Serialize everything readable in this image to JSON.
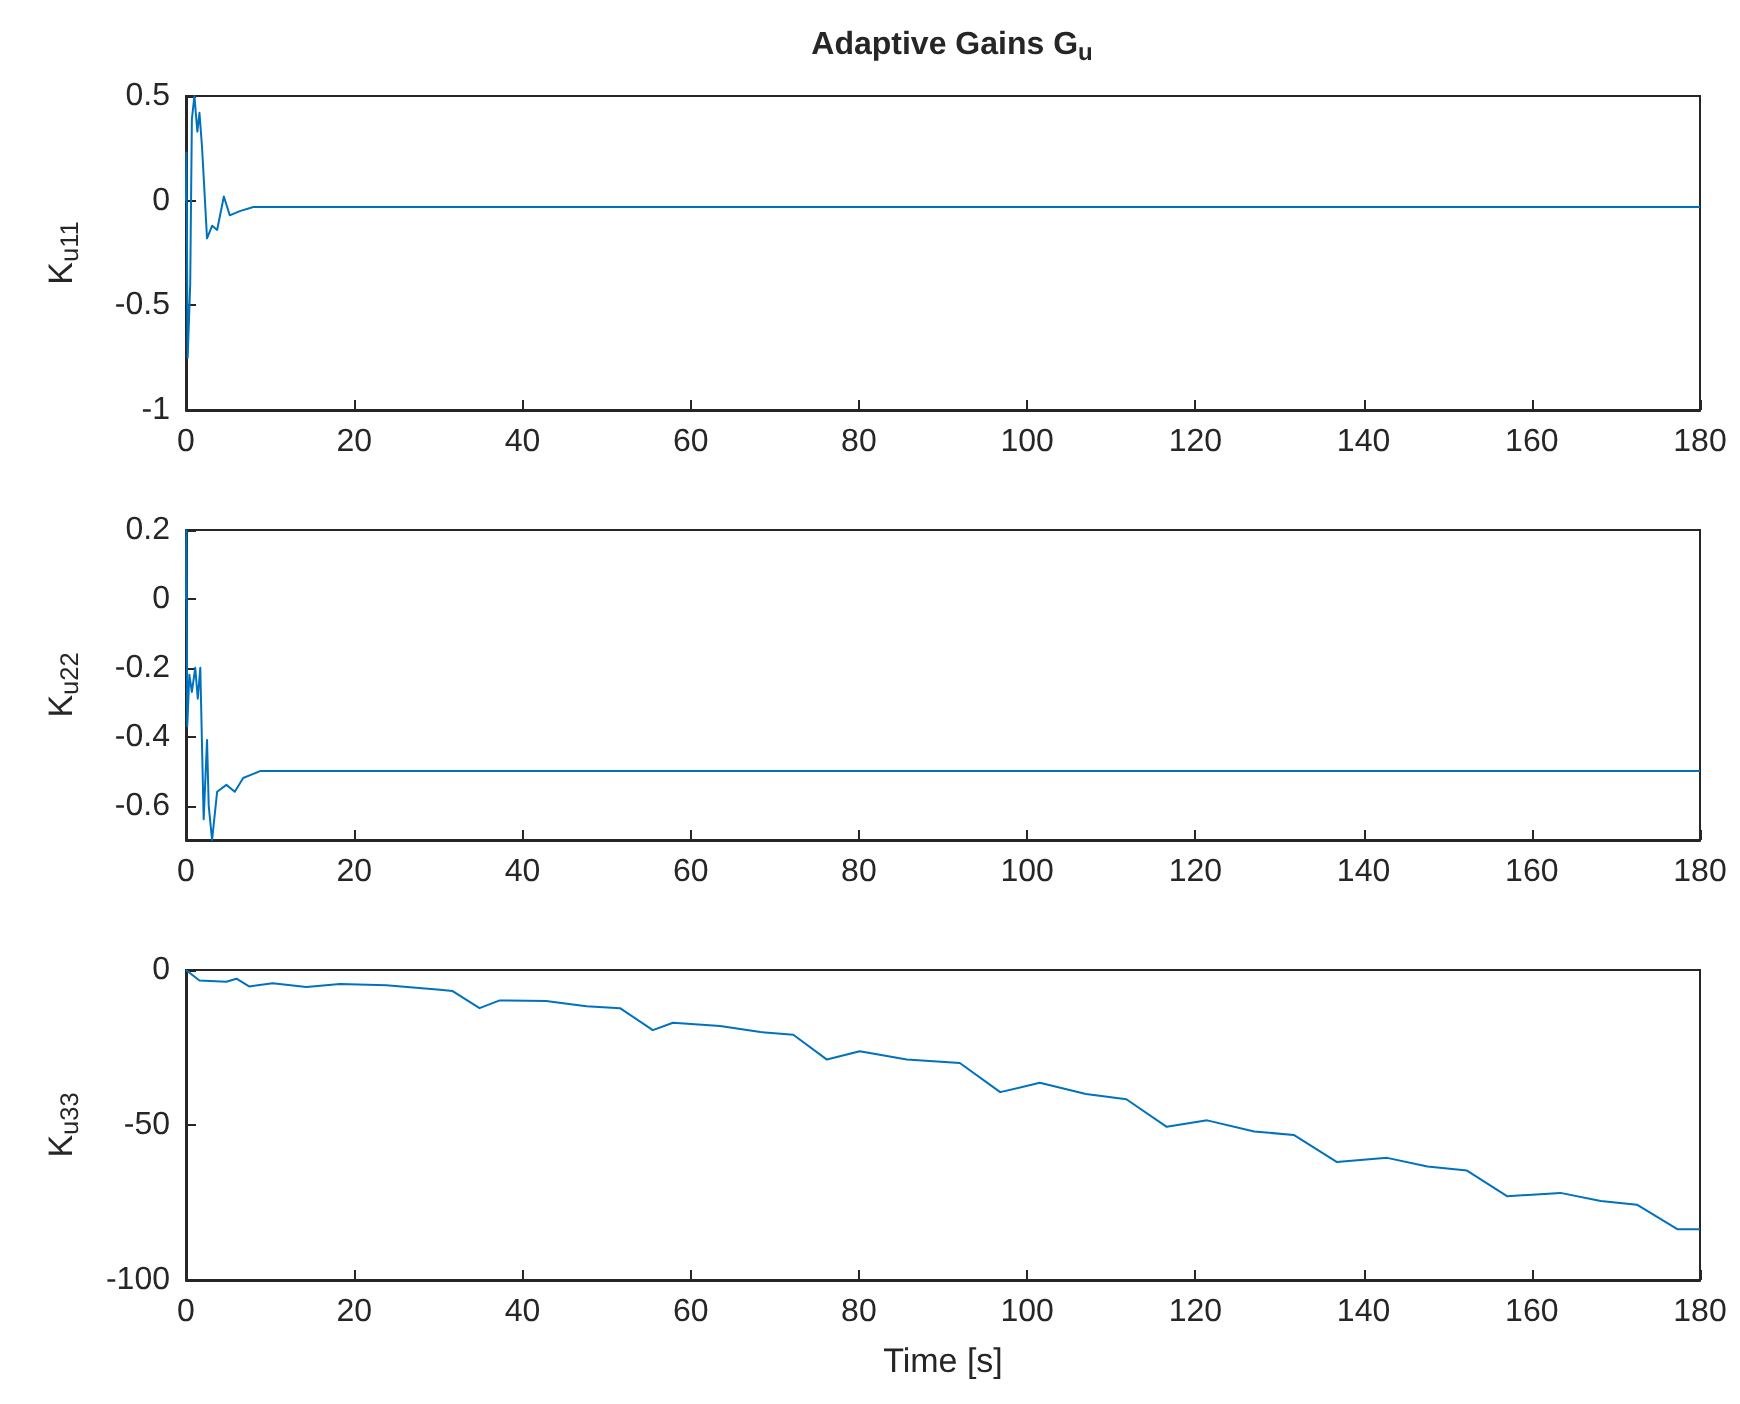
{
  "chart_data": [
    {
      "type": "line",
      "title": "Adaptive Gains G$_{u}$",
      "ylabel": "K$_{u11}$",
      "color": "#0072bd",
      "x": [
        0,
        0.05,
        0.2,
        0.5,
        0.7,
        1.0,
        1.35,
        1.6,
        1.9,
        2.5,
        3.1,
        3.7,
        4.5,
        5.2,
        6.4,
        8,
        9.6,
        180
      ],
      "values": [
        0,
        0.23,
        -0.75,
        -0.4,
        0.39,
        0.5,
        0.33,
        0.42,
        0.26,
        -0.18,
        -0.12,
        -0.14,
        0.02,
        -0.07,
        -0.05,
        -0.03,
        -0.03,
        -0.03
      ],
      "xlim": [
        0,
        180
      ],
      "xticks": [
        0,
        20,
        40,
        60,
        80,
        100,
        120,
        140,
        160,
        180
      ],
      "ylim": [
        -1,
        0.5
      ],
      "yticks": [
        -1,
        -0.5,
        0,
        0.5
      ]
    },
    {
      "type": "line",
      "ylabel": "K$_{u22}$",
      "color": "#0072bd",
      "x": [
        0,
        0.05,
        0.15,
        0.4,
        0.7,
        1.1,
        1.4,
        1.7,
        2.1,
        2.5,
        2.7,
        3.1,
        3.7,
        4.8,
        5.8,
        6.8,
        8.8,
        10.4,
        180
      ],
      "values": [
        0,
        0.2,
        -0.37,
        -0.22,
        -0.27,
        -0.2,
        -0.29,
        -0.2,
        -0.64,
        -0.41,
        -0.6,
        -0.7,
        -0.56,
        -0.54,
        -0.56,
        -0.52,
        -0.5,
        -0.5,
        -0.5
      ],
      "xlim": [
        0,
        180
      ],
      "xticks": [
        0,
        20,
        40,
        60,
        80,
        100,
        120,
        140,
        160,
        180
      ],
      "ylim": [
        -0.7,
        0.2
      ],
      "yticks": [
        -0.6,
        -0.4,
        -0.2,
        0,
        0.2
      ]
    },
    {
      "type": "line",
      "ylabel": "K$_{u33}$",
      "xlabel": "Time [s]",
      "color": "#0072bd",
      "x": [
        0,
        1.6,
        4.8,
        6,
        7.5,
        10.3,
        14.3,
        18.3,
        23.8,
        30.2,
        31.7,
        34.9,
        37.3,
        42.8,
        47.6,
        51.6,
        55.5,
        57.9,
        63.5,
        68.3,
        72.2,
        76.2,
        80.1,
        85.7,
        92,
        96.8,
        101.5,
        107,
        111.8,
        116.6,
        121.4,
        127,
        131.7,
        136.8,
        142.8,
        147.6,
        152.3,
        157.1,
        163.4,
        168.2,
        172.5,
        177.3,
        180
      ],
      "values": [
        0,
        -3.4,
        -3.8,
        -2.8,
        -5.3,
        -4.3,
        -5.5,
        -4.5,
        -4.9,
        -6.4,
        -6.8,
        -12.3,
        -9.8,
        -10,
        -11.7,
        -12.3,
        -19.4,
        -17,
        -18.1,
        -20,
        -20.9,
        -28.9,
        -26.2,
        -28.9,
        -30,
        -39.4,
        -36.4,
        -40,
        -41.7,
        -50.6,
        -48.5,
        -52.1,
        -53.2,
        -61.9,
        -60.6,
        -63.4,
        -64.7,
        -73,
        -71.9,
        -74.5,
        -75.7,
        -83.6,
        -83.6
      ],
      "xlim": [
        0,
        180
      ],
      "xticks": [
        0,
        20,
        40,
        60,
        80,
        100,
        120,
        140,
        160,
        180
      ],
      "ylim": [
        -100,
        0
      ],
      "yticks": [
        -100,
        -50,
        0
      ]
    }
  ]
}
